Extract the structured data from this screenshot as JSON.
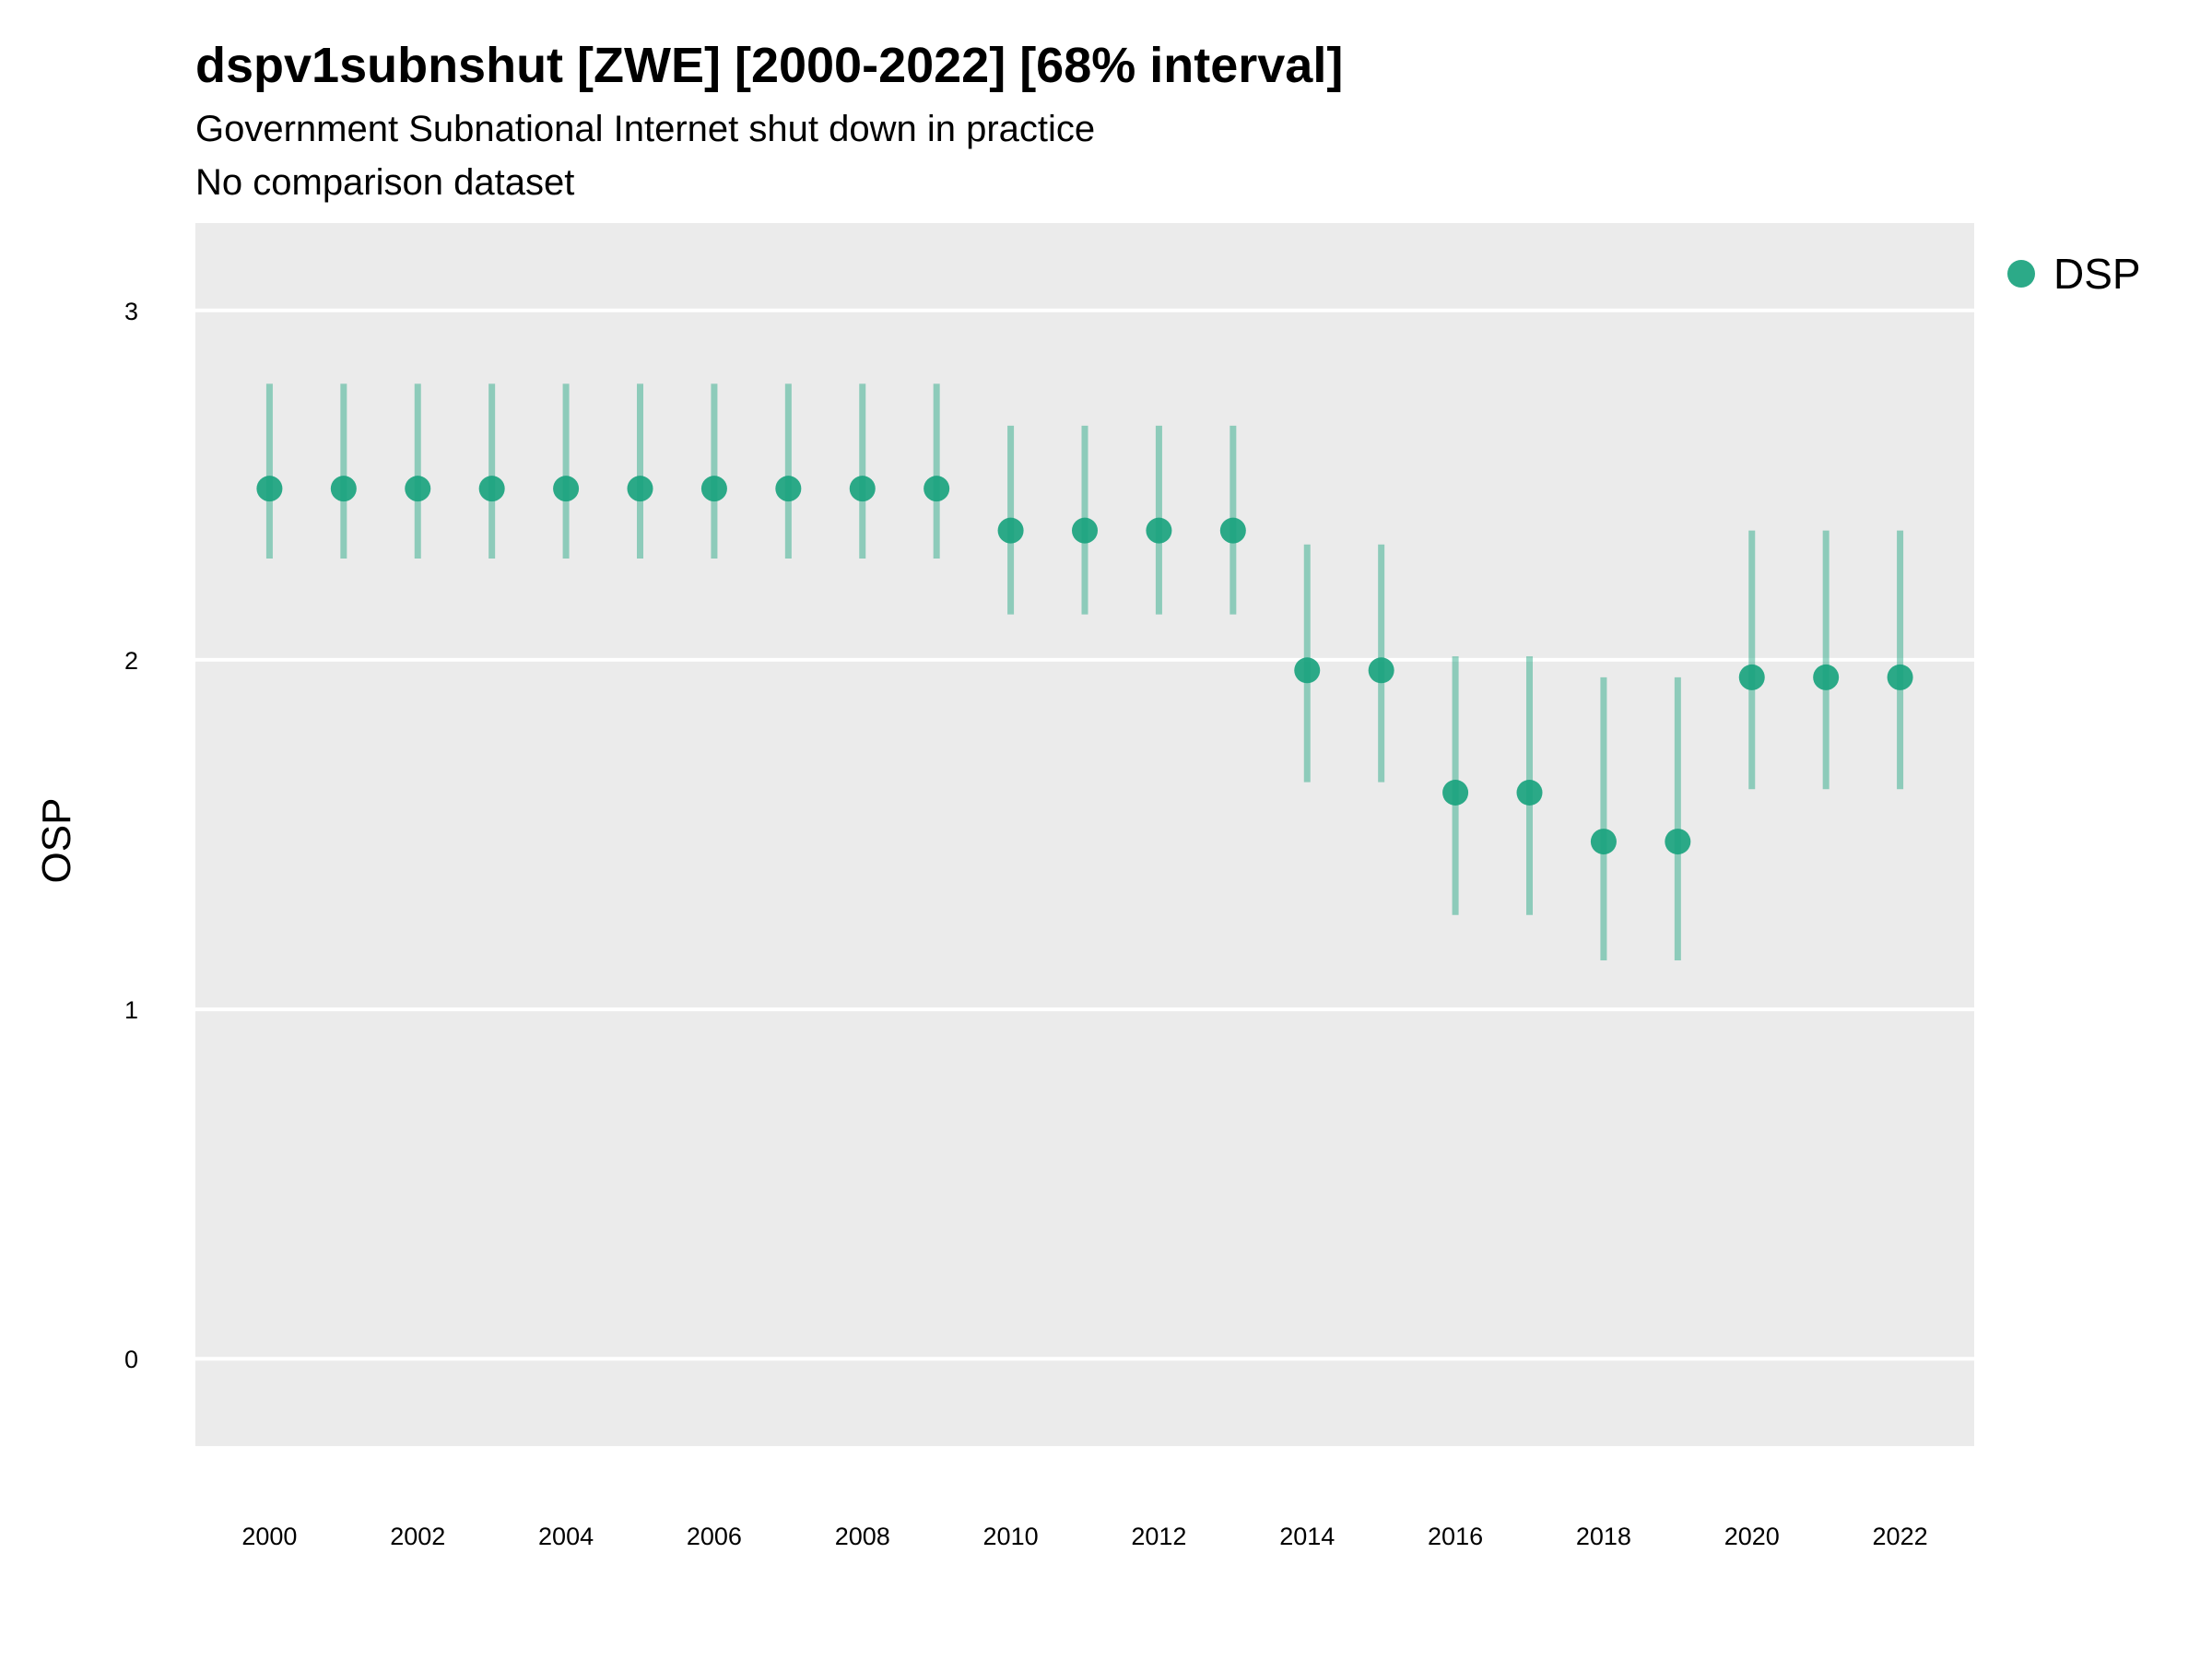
{
  "title": "dspv1subnshut [ZWE] [2000-2022] [68% interval]",
  "subtitle": "Government Subnational Internet shut down in practice",
  "subtitle2": "No comparison dataset",
  "colors": {
    "series": "#1aa37e",
    "panel": "#ebebeb",
    "grid": "#ffffff"
  },
  "chart_data": {
    "type": "scatter",
    "title": "dspv1subnshut [ZWE] [2000-2022] [68% interval]",
    "xlabel": "",
    "ylabel": "OSP",
    "xlim": [
      1999.0,
      2023.0
    ],
    "ylim": [
      -0.25,
      3.25
    ],
    "x_ticks": [
      2000,
      2002,
      2004,
      2006,
      2008,
      2010,
      2012,
      2014,
      2016,
      2018,
      2020,
      2022
    ],
    "y_ticks": [
      0,
      1,
      2,
      3
    ],
    "grid": true,
    "legend_position": "right",
    "series": [
      {
        "name": "DSP",
        "x": [
          2000,
          2001,
          2002,
          2003,
          2004,
          2005,
          2006,
          2007,
          2008,
          2009,
          2010,
          2011,
          2012,
          2013,
          2014,
          2015,
          2016,
          2017,
          2018,
          2019,
          2020,
          2021,
          2022
        ],
        "y": [
          2.49,
          2.49,
          2.49,
          2.49,
          2.49,
          2.49,
          2.49,
          2.49,
          2.49,
          2.49,
          2.37,
          2.37,
          2.37,
          2.37,
          1.97,
          1.97,
          1.62,
          1.62,
          1.48,
          1.48,
          1.95,
          1.95,
          1.95
        ],
        "lower": [
          2.29,
          2.29,
          2.29,
          2.29,
          2.29,
          2.29,
          2.29,
          2.29,
          2.29,
          2.29,
          2.13,
          2.13,
          2.13,
          2.13,
          1.65,
          1.65,
          1.27,
          1.27,
          1.14,
          1.14,
          1.63,
          1.63,
          1.63
        ],
        "upper": [
          2.79,
          2.79,
          2.79,
          2.79,
          2.79,
          2.79,
          2.79,
          2.79,
          2.79,
          2.79,
          2.67,
          2.67,
          2.67,
          2.67,
          2.33,
          2.33,
          2.01,
          2.01,
          1.95,
          1.95,
          2.37,
          2.37,
          2.37
        ]
      }
    ]
  }
}
